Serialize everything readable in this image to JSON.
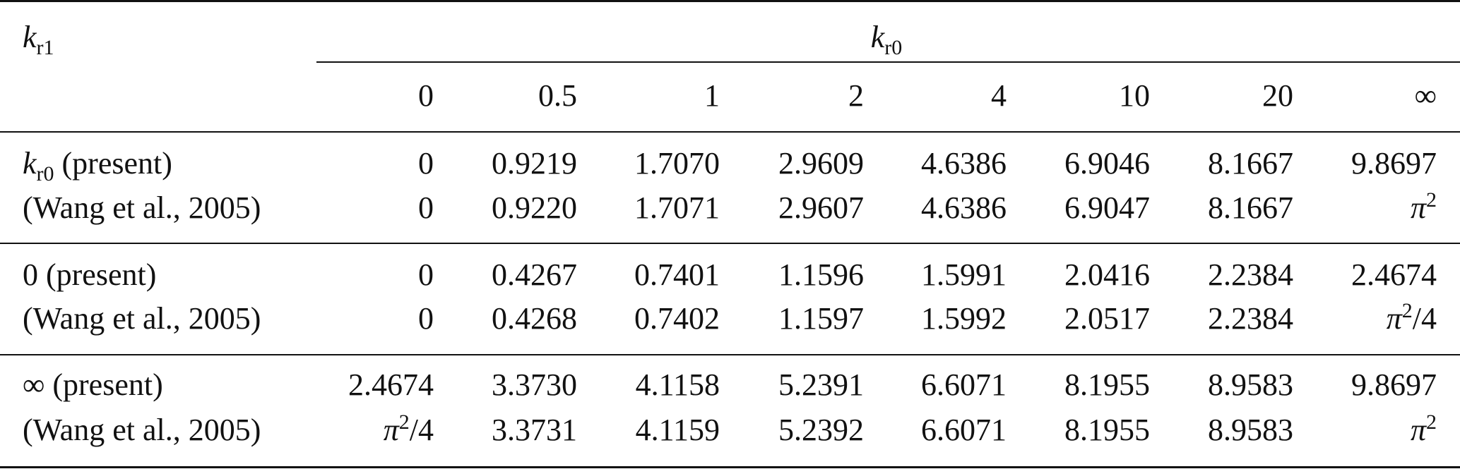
{
  "table": {
    "corner": [
      {
        "text": "k",
        "style": "italic"
      },
      {
        "text": "r1",
        "style": "sub"
      }
    ],
    "group_header": [
      {
        "text": "k",
        "style": "italic"
      },
      {
        "text": "r0",
        "style": "sub"
      }
    ],
    "columns": [
      "0",
      "0.5",
      "1",
      "2",
      "4",
      "10",
      "20",
      "∞"
    ],
    "groups": [
      [
        {
          "label": [
            {
              "text": "k",
              "style": "italic"
            },
            {
              "text": "r0",
              "style": "sub"
            },
            {
              "text": " (present)",
              "style": "plain"
            }
          ],
          "cells": [
            "0",
            "0.9219",
            "1.7070",
            "2.9609",
            "4.6386",
            "6.9046",
            "8.1667",
            "9.8697"
          ]
        },
        {
          "label": "(Wang et al., 2005)",
          "cells": [
            "0",
            "0.9220",
            "1.7071",
            "2.9607",
            "4.6386",
            "6.9047",
            "8.1667",
            [
              {
                "text": "π",
                "style": "italic"
              },
              {
                "text": "2",
                "style": "sup"
              }
            ]
          ]
        }
      ],
      [
        {
          "label": "0 (present)",
          "cells": [
            "0",
            "0.4267",
            "0.7401",
            "1.1596",
            "1.5991",
            "2.0416",
            "2.2384",
            "2.4674"
          ]
        },
        {
          "label": "(Wang et al., 2005)",
          "cells": [
            "0",
            "0.4268",
            "0.7402",
            "1.1597",
            "1.5992",
            "2.0517",
            "2.2384",
            [
              {
                "text": "π",
                "style": "italic"
              },
              {
                "text": "2",
                "style": "sup"
              },
              {
                "text": "/4",
                "style": "plain"
              }
            ]
          ]
        }
      ],
      [
        {
          "label": "∞ (present)",
          "cells": [
            "2.4674",
            "3.3730",
            "4.1158",
            "5.2391",
            "6.6071",
            "8.1955",
            "8.9583",
            "9.8697"
          ]
        },
        {
          "label": "(Wang et al., 2005)",
          "cells": [
            [
              {
                "text": "π",
                "style": "italic"
              },
              {
                "text": "2",
                "style": "sup"
              },
              {
                "text": "/4",
                "style": "plain"
              }
            ],
            "3.3731",
            "4.1159",
            "5.2392",
            "6.6071",
            "8.1955",
            "8.9583",
            [
              {
                "text": "π",
                "style": "italic"
              },
              {
                "text": "2",
                "style": "sup"
              }
            ]
          ]
        }
      ]
    ]
  }
}
